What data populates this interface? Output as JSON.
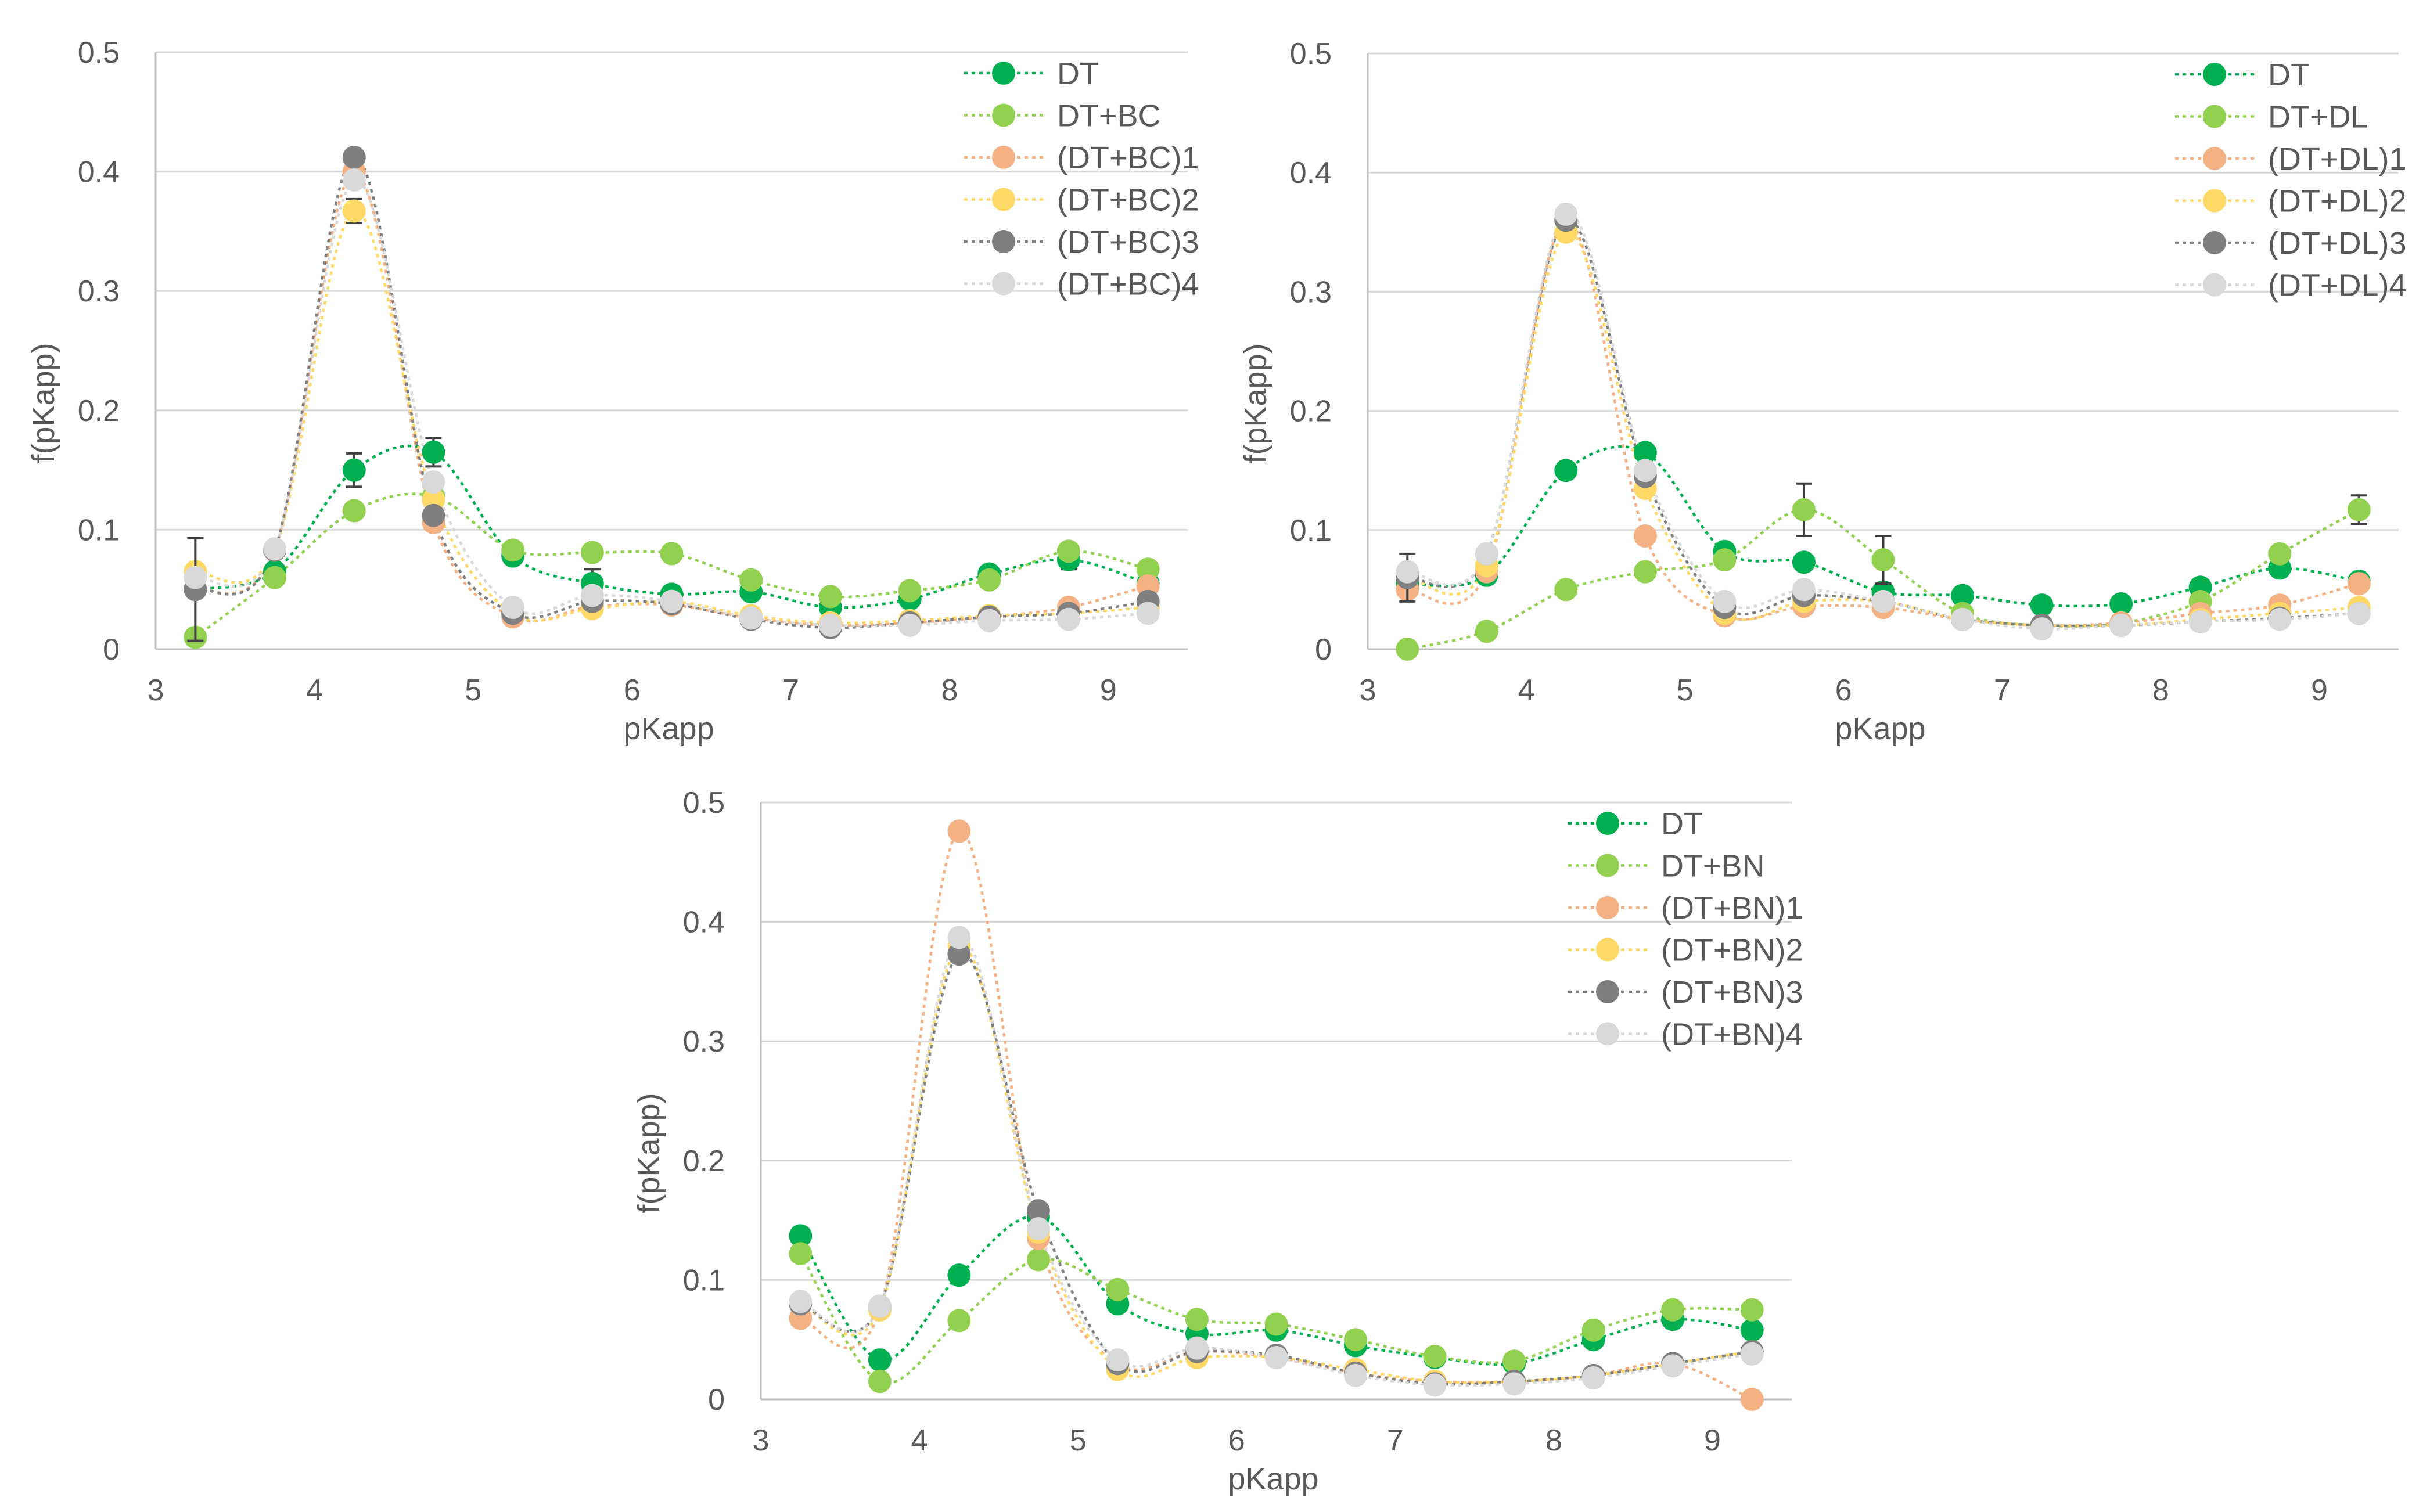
{
  "chart_data": [
    {
      "type": "line",
      "panel": "top-left",
      "title": "",
      "xlabel": "pKapp",
      "ylabel": "f(pKapp)",
      "xlim": [
        3,
        9.5
      ],
      "ylim": [
        0,
        0.5
      ],
      "xticks": [
        "3",
        "4",
        "5",
        "6",
        "7",
        "8",
        "9"
      ],
      "yticks": [
        "0",
        "0.1",
        "0.2",
        "0.3",
        "0.4",
        "0.5"
      ],
      "grid": true,
      "legend": "top-right",
      "x": [
        3.25,
        3.75,
        4.25,
        4.75,
        5.25,
        5.75,
        6.25,
        6.75,
        7.25,
        7.75,
        8.25,
        8.75,
        9.25
      ],
      "series": [
        {
          "name": "DT",
          "color": "#00b050",
          "values": [
            0.05,
            0.065,
            0.15,
            0.165,
            0.078,
            0.055,
            0.046,
            0.048,
            0.035,
            0.042,
            0.063,
            0.075,
            0.055
          ],
          "errors": [
            0.0,
            0.0,
            0.014,
            0.012,
            0.0,
            0.012,
            0.0,
            0.0,
            0.0,
            0.0,
            0.0,
            0.008,
            0.0
          ]
        },
        {
          "name": "DT+BC",
          "color": "#92d050",
          "values": [
            0.01,
            0.06,
            0.116,
            0.128,
            0.083,
            0.081,
            0.08,
            0.058,
            0.044,
            0.049,
            0.058,
            0.082,
            0.067
          ],
          "errors": [
            0.0,
            0.0,
            0.0,
            0.0,
            0.0,
            0.0,
            0.0,
            0.0,
            0.0,
            0.0,
            0.0,
            0.0,
            0.0
          ]
        },
        {
          "name": "(DT+BC)1",
          "color": "#f4b183",
          "values": [
            0.05,
            0.083,
            0.4,
            0.106,
            0.027,
            0.036,
            0.037,
            0.026,
            0.02,
            0.022,
            0.027,
            0.035,
            0.053
          ],
          "errors": [
            0.0,
            0.0,
            0.0,
            0.0,
            0.0,
            0.0,
            0.0,
            0.0,
            0.0,
            0.0,
            0.0,
            0.0,
            0.0
          ]
        },
        {
          "name": "(DT+BC)2",
          "color": "#ffd966",
          "values": [
            0.065,
            0.083,
            0.367,
            0.125,
            0.03,
            0.034,
            0.04,
            0.028,
            0.022,
            0.024,
            0.028,
            0.03,
            0.035
          ],
          "errors": [
            0.0,
            0.0,
            0.01,
            0.0,
            0.0,
            0.0,
            0.0,
            0.0,
            0.0,
            0.0,
            0.0,
            0.0,
            0.0
          ]
        },
        {
          "name": "(DT+BC)3",
          "color": "#7f7f7f",
          "values": [
            0.05,
            0.083,
            0.412,
            0.112,
            0.03,
            0.04,
            0.038,
            0.025,
            0.018,
            0.022,
            0.027,
            0.03,
            0.04
          ],
          "errors": [
            0.043,
            0.0,
            0.0,
            0.0,
            0.0,
            0.0,
            0.0,
            0.0,
            0.0,
            0.0,
            0.0,
            0.0,
            0.0
          ]
        },
        {
          "name": "(DT+BC)4",
          "color": "#d9d9d9",
          "values": [
            0.06,
            0.084,
            0.393,
            0.14,
            0.035,
            0.045,
            0.04,
            0.026,
            0.02,
            0.02,
            0.024,
            0.025,
            0.03
          ],
          "errors": [
            0.0,
            0.0,
            0.0,
            0.0,
            0.0,
            0.0,
            0.0,
            0.0,
            0.0,
            0.0,
            0.0,
            0.0,
            0.0
          ]
        }
      ]
    },
    {
      "type": "line",
      "panel": "top-right",
      "title": "",
      "xlabel": "pKapp",
      "ylabel": "f(pKapp)",
      "xlim": [
        3,
        9.5
      ],
      "ylim": [
        0,
        0.5
      ],
      "xticks": [
        "3",
        "4",
        "5",
        "6",
        "7",
        "8",
        "9"
      ],
      "yticks": [
        "0",
        "0.1",
        "0.2",
        "0.3",
        "0.4",
        "0.5"
      ],
      "grid": true,
      "legend": "top-right",
      "x": [
        3.25,
        3.75,
        4.25,
        4.75,
        5.25,
        5.75,
        6.25,
        6.75,
        7.25,
        7.75,
        8.25,
        8.75,
        9.25
      ],
      "series": [
        {
          "name": "DT",
          "color": "#00b050",
          "values": [
            0.055,
            0.062,
            0.15,
            0.165,
            0.082,
            0.073,
            0.048,
            0.045,
            0.037,
            0.038,
            0.052,
            0.068,
            0.057
          ],
          "errors": [
            0.0,
            0.0,
            0.0,
            0.0,
            0.0,
            0.0,
            0.0,
            0.0,
            0.0,
            0.0,
            0.0,
            0.0,
            0.0
          ]
        },
        {
          "name": "DT+DL",
          "color": "#92d050",
          "values": [
            0.0,
            0.015,
            0.05,
            0.065,
            0.075,
            0.117,
            0.075,
            0.03,
            0.02,
            0.022,
            0.04,
            0.08,
            0.117
          ],
          "errors": [
            0.0,
            0.0,
            0.0,
            0.0,
            0.0,
            0.022,
            0.02,
            0.0,
            0.0,
            0.0,
            0.0,
            0.0,
            0.012
          ]
        },
        {
          "name": "(DT+DL)1",
          "color": "#f4b183",
          "values": [
            0.05,
            0.065,
            0.36,
            0.095,
            0.028,
            0.036,
            0.035,
            0.025,
            0.02,
            0.022,
            0.03,
            0.037,
            0.055
          ],
          "errors": [
            0.0,
            0.0,
            0.0,
            0.0,
            0.0,
            0.0,
            0.0,
            0.0,
            0.0,
            0.0,
            0.0,
            0.0,
            0.0
          ]
        },
        {
          "name": "(DT+DL)2",
          "color": "#ffd966",
          "values": [
            0.06,
            0.07,
            0.35,
            0.135,
            0.03,
            0.04,
            0.04,
            0.025,
            0.02,
            0.02,
            0.025,
            0.03,
            0.035
          ],
          "errors": [
            0.0,
            0.0,
            0.0,
            0.0,
            0.0,
            0.0,
            0.0,
            0.0,
            0.0,
            0.0,
            0.0,
            0.0,
            0.0
          ]
        },
        {
          "name": "(DT+DL)3",
          "color": "#7f7f7f",
          "values": [
            0.06,
            0.08,
            0.36,
            0.145,
            0.035,
            0.045,
            0.04,
            0.025,
            0.02,
            0.02,
            0.023,
            0.026,
            0.03
          ],
          "errors": [
            0.02,
            0.0,
            0.0,
            0.0,
            0.0,
            0.0,
            0.0,
            0.0,
            0.0,
            0.0,
            0.0,
            0.0,
            0.0
          ]
        },
        {
          "name": "(DT+DL)4",
          "color": "#d9d9d9",
          "values": [
            0.065,
            0.08,
            0.365,
            0.15,
            0.04,
            0.05,
            0.04,
            0.025,
            0.017,
            0.02,
            0.023,
            0.025,
            0.03
          ],
          "errors": [
            0.0,
            0.0,
            0.0,
            0.0,
            0.0,
            0.0,
            0.0,
            0.0,
            0.0,
            0.0,
            0.0,
            0.0,
            0.0
          ]
        }
      ]
    },
    {
      "type": "line",
      "panel": "bottom-center",
      "title": "",
      "xlabel": "pKapp",
      "ylabel": "f(pKapp)",
      "xlim": [
        3,
        9.5
      ],
      "ylim": [
        0,
        0.5
      ],
      "xticks": [
        "3",
        "4",
        "5",
        "6",
        "7",
        "8",
        "9"
      ],
      "yticks": [
        "0",
        "0.1",
        "0.2",
        "0.3",
        "0.4",
        "0.5"
      ],
      "grid": true,
      "legend": "top-right",
      "x": [
        3.25,
        3.75,
        4.25,
        4.75,
        5.25,
        5.75,
        6.25,
        6.75,
        7.25,
        7.75,
        8.25,
        8.75,
        9.25
      ],
      "series": [
        {
          "name": "DT",
          "color": "#00b050",
          "values": [
            0.137,
            0.033,
            0.104,
            0.153,
            0.08,
            0.055,
            0.058,
            0.045,
            0.035,
            0.03,
            0.05,
            0.067,
            0.058
          ],
          "errors": [
            0.0,
            0.0,
            0.0,
            0.0,
            0.0,
            0.0,
            0.0,
            0.0,
            0.0,
            0.0,
            0.0,
            0.0,
            0.0
          ]
        },
        {
          "name": "DT+BN",
          "color": "#92d050",
          "values": [
            0.122,
            0.015,
            0.066,
            0.117,
            0.092,
            0.067,
            0.063,
            0.05,
            0.036,
            0.032,
            0.058,
            0.075,
            0.075
          ],
          "errors": [
            0.0,
            0.0,
            0.0,
            0.0,
            0.0,
            0.0,
            0.0,
            0.0,
            0.0,
            0.0,
            0.0,
            0.0,
            0.0
          ]
        },
        {
          "name": "(DT+BN)1",
          "color": "#f4b183",
          "values": [
            0.068,
            0.075,
            0.476,
            0.135,
            0.03,
            0.04,
            0.035,
            0.022,
            0.015,
            0.015,
            0.02,
            0.03,
            0.0
          ],
          "errors": [
            0.0,
            0.0,
            0.0,
            0.0,
            0.0,
            0.0,
            0.0,
            0.0,
            0.0,
            0.0,
            0.0,
            0.0,
            0.0
          ]
        },
        {
          "name": "(DT+BN)2",
          "color": "#ffd966",
          "values": [
            0.08,
            0.075,
            0.38,
            0.14,
            0.025,
            0.035,
            0.035,
            0.025,
            0.015,
            0.015,
            0.02,
            0.03,
            0.04
          ],
          "errors": [
            0.0,
            0.0,
            0.0,
            0.0,
            0.0,
            0.0,
            0.0,
            0.0,
            0.0,
            0.0,
            0.0,
            0.0,
            0.0
          ]
        },
        {
          "name": "(DT+BN)3",
          "color": "#7f7f7f",
          "values": [
            0.08,
            0.078,
            0.373,
            0.158,
            0.03,
            0.04,
            0.037,
            0.022,
            0.013,
            0.015,
            0.02,
            0.03,
            0.04
          ],
          "errors": [
            0.0,
            0.0,
            0.0,
            0.0,
            0.0,
            0.0,
            0.0,
            0.0,
            0.0,
            0.0,
            0.0,
            0.0,
            0.0
          ]
        },
        {
          "name": "(DT+BN)4",
          "color": "#d9d9d9",
          "values": [
            0.082,
            0.078,
            0.387,
            0.143,
            0.033,
            0.043,
            0.035,
            0.02,
            0.012,
            0.013,
            0.018,
            0.028,
            0.038
          ],
          "errors": [
            0.0,
            0.0,
            0.0,
            0.0,
            0.0,
            0.0,
            0.0,
            0.0,
            0.0,
            0.0,
            0.0,
            0.0,
            0.0
          ]
        }
      ]
    }
  ]
}
